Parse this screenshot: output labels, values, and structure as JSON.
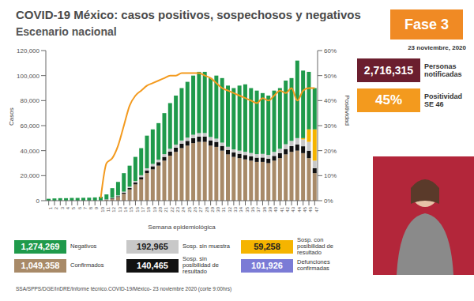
{
  "chart_data": {
    "type": "bar",
    "title": "COVID-19 México: casos positivos, sospechosos y negativos",
    "subtitle": "Escenario nacional",
    "x_label": "Semana epidemiológica",
    "y_label": "Casos",
    "y2_label": "Positividad",
    "stacked": true,
    "grid": false,
    "categories": [
      "1",
      "2",
      "3",
      "4",
      "5",
      "6",
      "7",
      "8",
      "9",
      "10",
      "11",
      "12",
      "13",
      "14",
      "15",
      "16",
      "17",
      "18",
      "19",
      "20",
      "21",
      "22",
      "23",
      "24",
      "25",
      "26",
      "27",
      "28",
      "29",
      "30",
      "31",
      "32",
      "33",
      "34",
      "35",
      "36",
      "37",
      "38",
      "39",
      "40",
      "41",
      "42",
      "43",
      "44",
      "45",
      "46",
      "47"
    ],
    "ylim": [
      0,
      120000
    ],
    "yticks": [
      0,
      {
        "value": 20000,
        "label": "20,000"
      },
      {
        "value": 40000,
        "label": "40,000"
      },
      {
        "value": 60000,
        "label": "60,000"
      },
      {
        "value": 80000,
        "label": "80,000"
      },
      {
        "value": 100000,
        "label": "100,000"
      },
      {
        "value": 120000,
        "label": "120,000"
      }
    ],
    "y2lim": [
      0,
      60
    ],
    "y2ticks": [
      {
        "value": 0,
        "label": "0%"
      },
      {
        "value": 10,
        "label": "10%"
      },
      {
        "value": 20,
        "label": "20%"
      },
      {
        "value": 30,
        "label": "30%"
      },
      {
        "value": 40,
        "label": "40%"
      },
      {
        "value": 50,
        "label": "50%"
      },
      {
        "value": 60,
        "label": "60%"
      }
    ],
    "series": [
      {
        "name": "Confirmados",
        "color": "#a88a68",
        "values": [
          0,
          0,
          0,
          0,
          0,
          0,
          0,
          0,
          0,
          100,
          700,
          1500,
          3000,
          5500,
          9000,
          13000,
          17000,
          22000,
          25000,
          28000,
          32000,
          36000,
          39000,
          42000,
          44000,
          46000,
          47000,
          47000,
          44000,
          43000,
          40000,
          37000,
          35000,
          34000,
          33000,
          32000,
          31000,
          31000,
          30000,
          32000,
          34000,
          37000,
          39000,
          40000,
          38000,
          34000,
          22000
        ]
      },
      {
        "name": "Sosp. sin posibilidad de resultado",
        "color": "#111111",
        "values": [
          0,
          0,
          0,
          0,
          0,
          0,
          0,
          0,
          0,
          0,
          200,
          400,
          600,
          900,
          1200,
          1500,
          1800,
          2200,
          2500,
          2800,
          3000,
          3200,
          3400,
          3600,
          3800,
          4000,
          4200,
          4300,
          4200,
          4000,
          3800,
          3600,
          3500,
          3500,
          3500,
          3400,
          3400,
          3500,
          3600,
          3800,
          4000,
          4300,
          4600,
          5000,
          5500,
          6000,
          4000
        ]
      },
      {
        "name": "Sosp. sin muestra",
        "color": "#c8c8c8",
        "values": [
          0,
          0,
          0,
          0,
          0,
          0,
          0,
          0,
          0,
          0,
          200,
          400,
          600,
          800,
          1000,
          1200,
          1500,
          1700,
          1900,
          2000,
          2200,
          2300,
          2400,
          2500,
          2600,
          2700,
          2800,
          2800,
          2700,
          2600,
          2600,
          2500,
          2500,
          2500,
          2600,
          2700,
          2800,
          2900,
          3000,
          3200,
          3500,
          3800,
          4200,
          5000,
          5500,
          7000,
          6000
        ]
      },
      {
        "name": "Sosp. con posibilidad de resultado",
        "color": "#f5b400",
        "values": [
          0,
          0,
          0,
          0,
          0,
          0,
          0,
          0,
          0,
          0,
          0,
          0,
          0,
          0,
          0,
          0,
          0,
          0,
          0,
          0,
          0,
          0,
          0,
          0,
          0,
          0,
          0,
          0,
          0,
          0,
          0,
          0,
          0,
          0,
          0,
          0,
          0,
          0,
          0,
          0,
          0,
          0,
          0,
          0,
          1000,
          10000,
          25000
        ]
      },
      {
        "name": "Negativos",
        "color": "#1f9a4b",
        "values": [
          1500,
          1800,
          2000,
          2000,
          2200,
          2200,
          2300,
          2400,
          2600,
          3000,
          3900,
          7700,
          10800,
          14800,
          16800,
          19300,
          21700,
          26100,
          27600,
          29200,
          32800,
          36500,
          39200,
          41900,
          44600,
          47300,
          49000,
          48900,
          47100,
          50400,
          51600,
          48900,
          49000,
          52000,
          53900,
          51900,
          50800,
          48600,
          47400,
          49000,
          48500,
          50900,
          50200,
          62000,
          54000,
          46000,
          33000
        ]
      },
      {
        "name": "Positividad",
        "type": "line",
        "axis": "y2",
        "color": "#f39a1e",
        "values": [
          null,
          null,
          null,
          null,
          null,
          null,
          null,
          null,
          null,
          1,
          15,
          17,
          22,
          30,
          38,
          42,
          44,
          46,
          47,
          48,
          49,
          50,
          50,
          51,
          51,
          51,
          51,
          50,
          49,
          47,
          45,
          44,
          43,
          42,
          41,
          40,
          39,
          41,
          40,
          42,
          44,
          43,
          45,
          40,
          44,
          45,
          45
        ]
      }
    ]
  },
  "summary": [
    {
      "label": "Negativos",
      "value": "1,274,269",
      "color": "#1f9a4b"
    },
    {
      "label": "Confirmados",
      "value": "1,049,358",
      "color": "#a88a68"
    },
    {
      "label": "Sosp. sin muestra",
      "value": "192,965",
      "color": "#c8c8c8"
    },
    {
      "label": "Sosp. sin posibilidad de resultado",
      "value": "140,465",
      "color": "#111111"
    },
    {
      "label": "Sosp. con posibilidad de resultado",
      "value": "59,258",
      "color": "#f5b400"
    },
    {
      "label": "Defunciones confirmadas",
      "value": "101,926",
      "color": "#7b7bd6"
    }
  ],
  "panel": {
    "phase": "Fase 3",
    "date": "23 noviembre, 2020",
    "stats": [
      {
        "value": "2,716,315",
        "label": "Personas notificadas",
        "color": "#6b1e2e"
      },
      {
        "value": "45%",
        "label": "Positividad SE 46",
        "color": "#f39a1e"
      }
    ]
  },
  "source": "SSA/SPPS/DGE/InDRE/Informe técnico.COVID-19/México- 23 noviembre 2020 (corte 9:00hrs)"
}
